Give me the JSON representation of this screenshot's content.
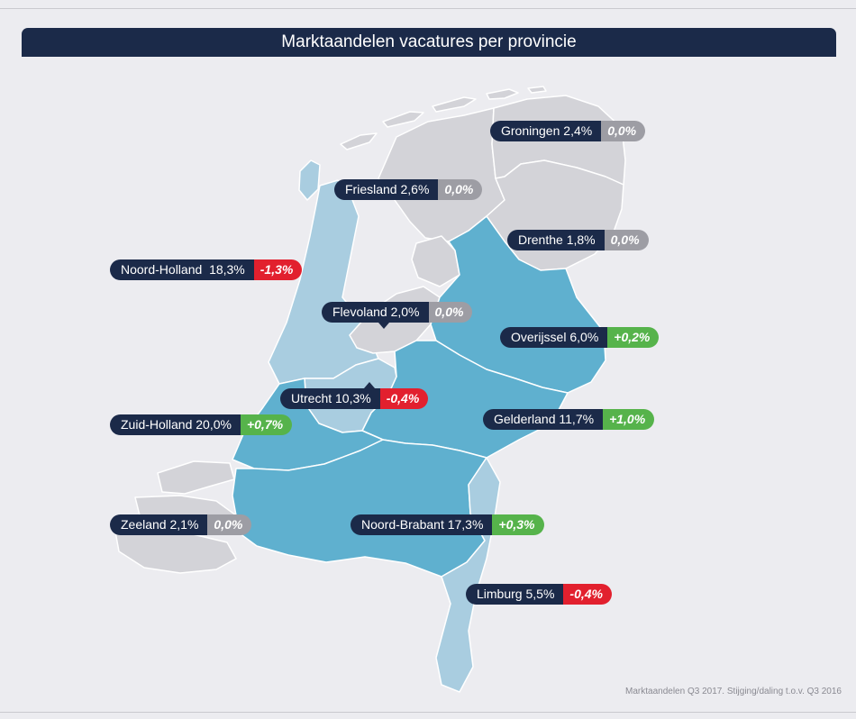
{
  "title": "Marktaandelen vacatures per provincie",
  "footnote": "Marktaandelen Q3 2017. Stijging/daling t.o.v. Q3  2016",
  "colors": {
    "header": "#1b2a49",
    "light_grey": "#d3d3d8",
    "light_blue": "#a9cde0",
    "dark_blue": "#5fb0cf",
    "increase": "#56b34b",
    "decrease": "#e2202e",
    "unchanged": "#9d9da4"
  },
  "provinces": [
    {
      "name": "Groningen",
      "share": "2,4%",
      "change": "0,0%",
      "trend": "unchanged",
      "fill": "light_grey"
    },
    {
      "name": "Friesland",
      "share": "2,6%",
      "change": "0,0%",
      "trend": "unchanged",
      "fill": "light_grey"
    },
    {
      "name": "Drenthe",
      "share": "1,8%",
      "change": "0,0%",
      "trend": "unchanged",
      "fill": "light_grey"
    },
    {
      "name": "Noord-Holland",
      "share": "18,3%",
      "change": "-1,3%",
      "trend": "decrease",
      "fill": "light_blue"
    },
    {
      "name": "Flevoland",
      "share": "2,0%",
      "change": "0,0%",
      "trend": "unchanged",
      "fill": "light_grey"
    },
    {
      "name": "Overijssel",
      "share": "6,0%",
      "change": "+0,2%",
      "trend": "increase",
      "fill": "dark_blue"
    },
    {
      "name": "Utrecht",
      "share": "10,3%",
      "change": "-0,4%",
      "trend": "decrease",
      "fill": "light_blue"
    },
    {
      "name": "Zuid-Holland",
      "share": "20,0%",
      "change": "+0,7%",
      "trend": "increase",
      "fill": "dark_blue"
    },
    {
      "name": "Gelderland",
      "share": "11,7%",
      "change": "+1,0%",
      "trend": "increase",
      "fill": "dark_blue"
    },
    {
      "name": "Zeeland",
      "share": "2,1%",
      "change": "0,0%",
      "trend": "unchanged",
      "fill": "light_grey"
    },
    {
      "name": "Noord-Brabant",
      "share": "17,3%",
      "change": "+0,3%",
      "trend": "increase",
      "fill": "dark_blue"
    },
    {
      "name": "Limburg",
      "share": "5,5%",
      "change": "-0,4%",
      "trend": "decrease",
      "fill": "light_blue"
    }
  ]
}
